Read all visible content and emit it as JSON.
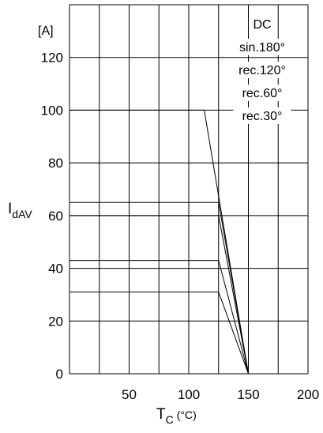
{
  "chart_data": {
    "type": "line",
    "title": "",
    "ylabel": {
      "main": "I",
      "sub": "dAV"
    },
    "yunit": "[A]",
    "xlabel": {
      "main": "T",
      "sub": "C",
      "unit": "(°C)"
    },
    "xlim": [
      0,
      200
    ],
    "ylim": [
      0,
      140
    ],
    "grid": true,
    "xticks": [
      50,
      100,
      150,
      200
    ],
    "yticks": [
      0,
      20,
      40,
      60,
      80,
      100,
      120
    ],
    "legend_position": "top-right",
    "series": [
      {
        "name": "DC",
        "x": [
          0,
          113,
          150
        ],
        "y": [
          100,
          100,
          0
        ]
      },
      {
        "name": "sin.180°",
        "x": [
          0,
          125,
          150
        ],
        "y": [
          65,
          65,
          0
        ]
      },
      {
        "name": "rec.120°",
        "x": [
          0,
          125,
          150
        ],
        "y": [
          60,
          60,
          0
        ]
      },
      {
        "name": "rec.60°",
        "x": [
          0,
          125,
          150
        ],
        "y": [
          43,
          43,
          0
        ]
      },
      {
        "name": "rec.30°",
        "x": [
          0,
          125,
          150
        ],
        "y": [
          31,
          31,
          0
        ]
      }
    ]
  }
}
